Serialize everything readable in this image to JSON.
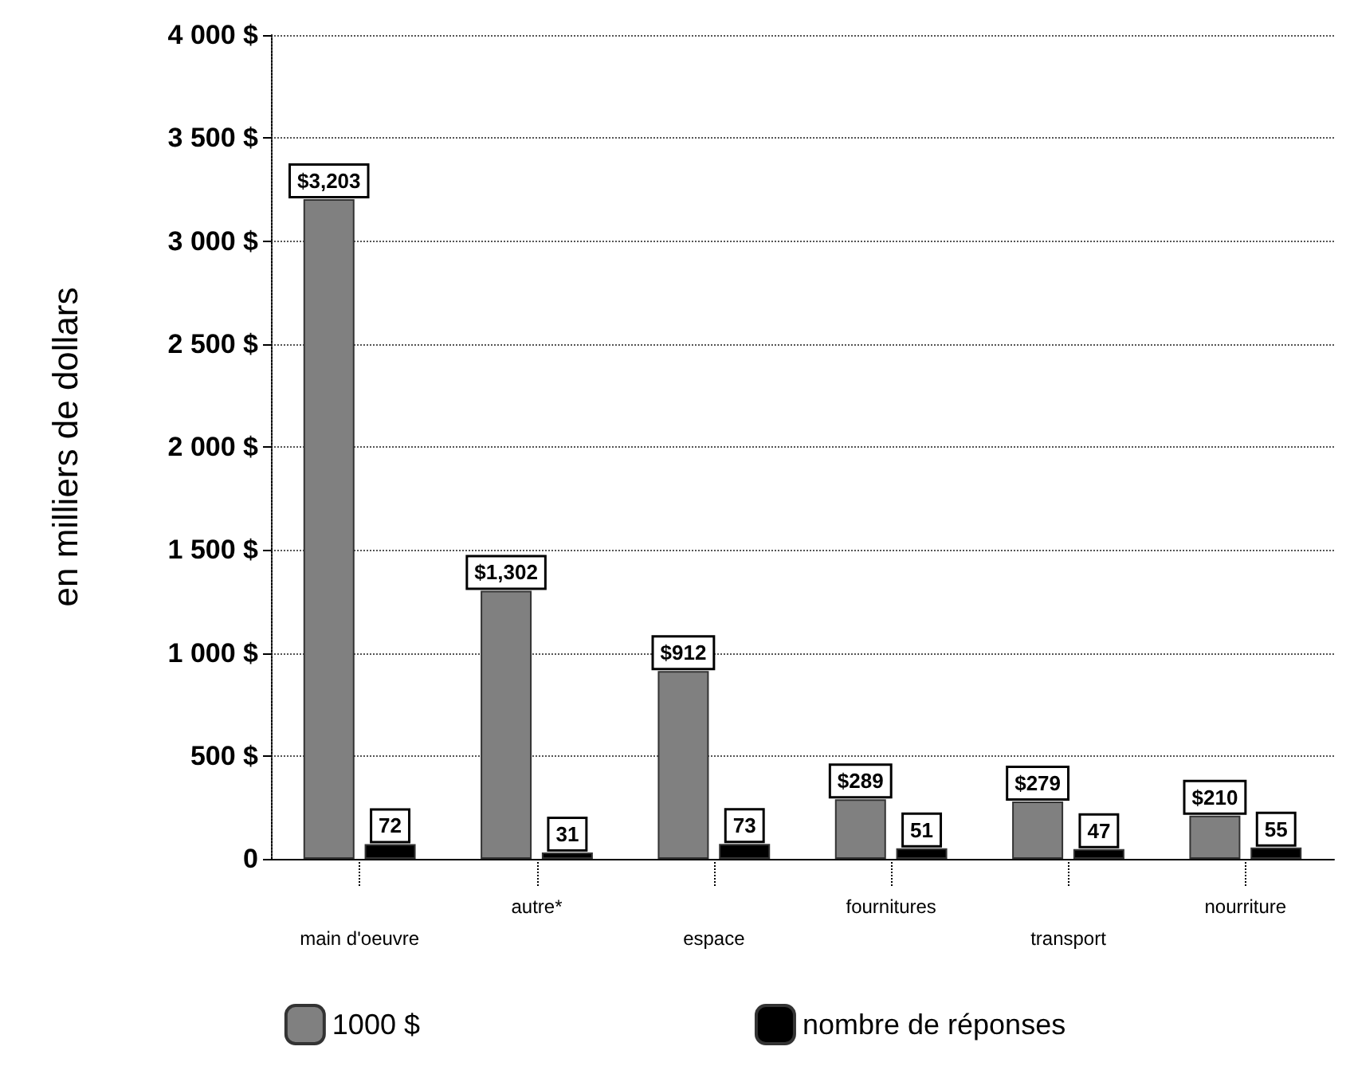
{
  "chart_data": {
    "type": "bar",
    "ylabel": "en milliers de dollars",
    "categories": [
      "main d'oeuvre",
      "autre*",
      "espace",
      "fournitures",
      "transport",
      "nourriture"
    ],
    "series": [
      {
        "name": "1000 $",
        "color": "#808080",
        "values": [
          3203,
          1302,
          912,
          289,
          279,
          210
        ],
        "value_labels": [
          "$3,203",
          "$1,302",
          "$912",
          "$289",
          "$279",
          "$210"
        ]
      },
      {
        "name": "nombre de réponses",
        "color": "#000000",
        "values": [
          72,
          31,
          73,
          51,
          47,
          55
        ],
        "value_labels": [
          "72",
          "31",
          "73",
          "51",
          "47",
          "55"
        ]
      }
    ],
    "ylim": [
      0,
      4000
    ],
    "yticks": [
      {
        "value": 0,
        "label": "0"
      },
      {
        "value": 500,
        "label": "500 $"
      },
      {
        "value": 1000,
        "label": "1 000 $"
      },
      {
        "value": 1500,
        "label": "1 500 $"
      },
      {
        "value": 2000,
        "label": "2 000 $"
      },
      {
        "value": 2500,
        "label": "2 500 $"
      },
      {
        "value": 3000,
        "label": "3 000 $"
      },
      {
        "value": 3500,
        "label": "3 500 $"
      },
      {
        "value": 4000,
        "label": "4 000 $"
      }
    ],
    "grid": "y",
    "legend": "bottom"
  }
}
